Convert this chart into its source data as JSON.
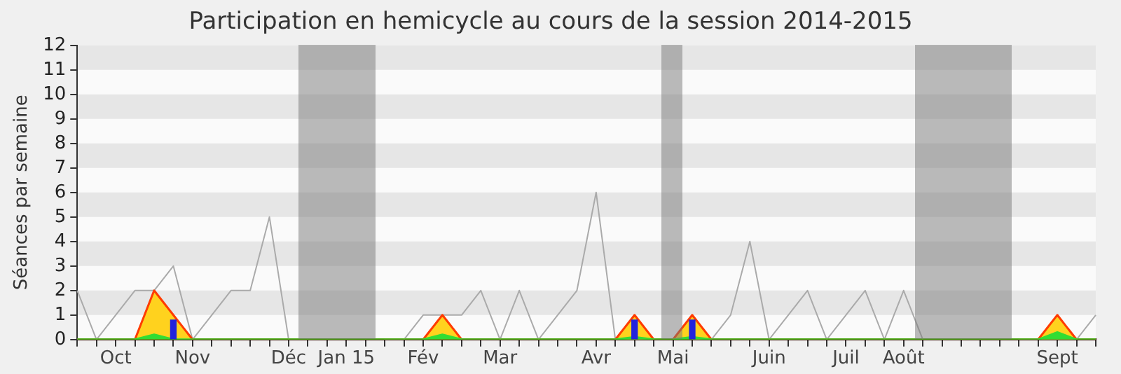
{
  "chart_data": {
    "type": "line",
    "title": "Participation en hemicycle au cours de la session 2014-2015",
    "ylabel": "Séances par semaine",
    "categories": [
      null,
      null,
      "Oct",
      null,
      null,
      null,
      "Nov",
      null,
      null,
      null,
      null,
      "Déc",
      null,
      null,
      "Jan 15",
      null,
      null,
      null,
      "Fév",
      null,
      null,
      null,
      "Mar",
      null,
      null,
      null,
      null,
      "Avr",
      null,
      null,
      null,
      "Mai",
      null,
      null,
      null,
      null,
      "Juin",
      null,
      null,
      null,
      "Juil",
      null,
      null,
      "Août",
      null,
      null,
      null,
      null,
      null,
      null,
      null,
      "Sept",
      null,
      null
    ],
    "series": [
      {
        "color": "#aaaaaa",
        "values": [
          2,
          0,
          1,
          2,
          2,
          3,
          0,
          1,
          2,
          2,
          5,
          0,
          null,
          null,
          null,
          null,
          0,
          0,
          1,
          1,
          1,
          2,
          0,
          2,
          0,
          1,
          2,
          6,
          0,
          0,
          0,
          null,
          0,
          0,
          1,
          4,
          0,
          1,
          2,
          0,
          1,
          2,
          0,
          2,
          0,
          null,
          null,
          null,
          null,
          0,
          0,
          0,
          0,
          1
        ]
      },
      {
        "type": "area",
        "color": "#ffd21e",
        "values": [
          0,
          0,
          0,
          0,
          2,
          1,
          0,
          0,
          0,
          0,
          0,
          0,
          0,
          0,
          0,
          0,
          0,
          0,
          0,
          1,
          0,
          0,
          0,
          0,
          0,
          0,
          0,
          0,
          0,
          1,
          0,
          0,
          1,
          0,
          0,
          0,
          0,
          0,
          0,
          0,
          0,
          0,
          0,
          0,
          0,
          0,
          0,
          0,
          0,
          0,
          0,
          1,
          0,
          0
        ]
      },
      {
        "type": "area",
        "color": "#33dd33",
        "values": [
          0,
          0,
          0,
          0,
          0.2,
          0,
          0,
          0,
          0,
          0,
          0,
          0,
          0,
          0,
          0,
          0,
          0,
          0,
          0,
          0.2,
          0,
          0,
          0,
          0,
          0,
          0,
          0,
          0,
          0,
          0.1,
          0,
          0,
          0.1,
          0,
          0,
          0,
          0,
          0,
          0,
          0,
          0,
          0,
          0,
          0,
          0,
          0,
          0,
          0,
          0,
          0,
          0,
          0.3,
          0,
          0
        ]
      },
      {
        "type": "bar",
        "color": "#2222dd",
        "values": [
          null,
          null,
          null,
          null,
          null,
          0.8,
          null,
          null,
          null,
          null,
          null,
          null,
          null,
          null,
          null,
          null,
          null,
          null,
          null,
          null,
          null,
          null,
          null,
          null,
          null,
          null,
          null,
          null,
          null,
          0.8,
          null,
          null,
          0.8,
          null,
          null,
          null,
          null,
          null,
          null,
          null,
          null,
          null,
          null,
          null,
          null,
          null,
          null,
          null,
          null,
          null,
          null,
          null,
          null,
          null
        ]
      }
    ],
    "ylim": [
      0,
      12
    ],
    "yticks": [
      0,
      1,
      2,
      3,
      4,
      5,
      6,
      7,
      8,
      9,
      10,
      11,
      12
    ],
    "legend": false
  }
}
